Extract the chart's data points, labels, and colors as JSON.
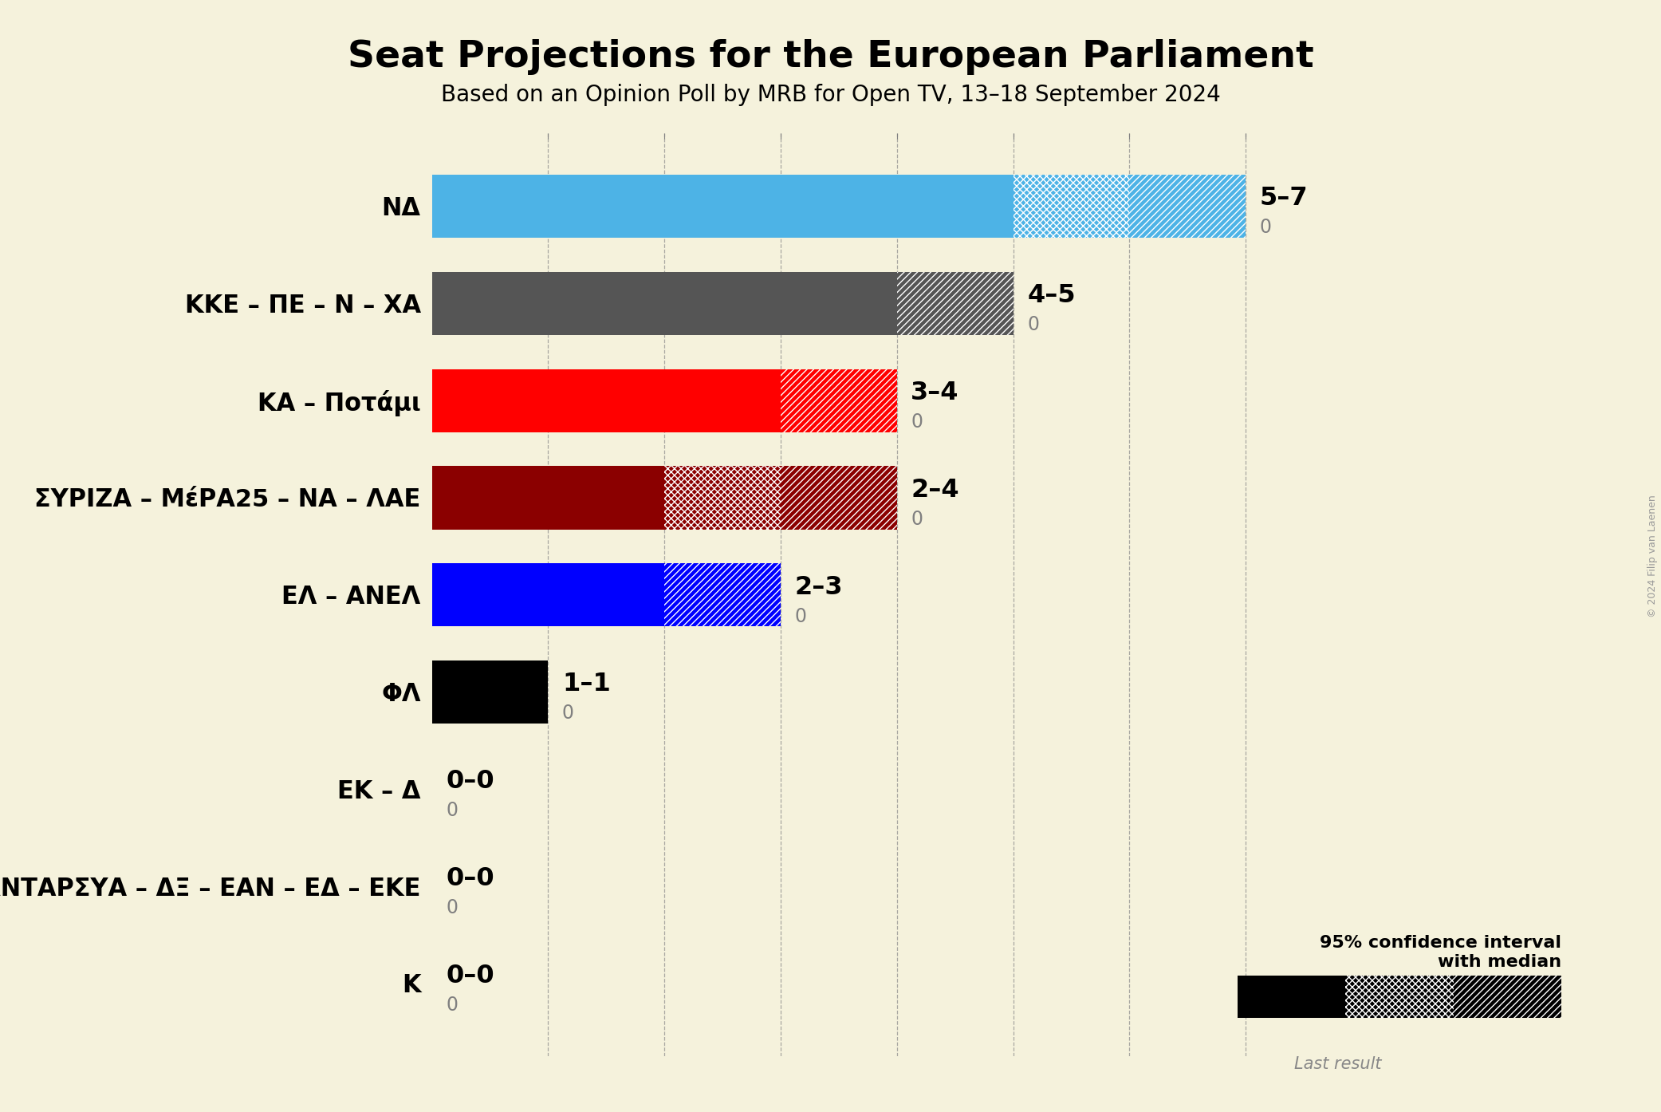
{
  "title": "Seat Projections for the European Parliament",
  "subtitle": "Based on an Opinion Poll by MRB for Open TV, 13–18 September 2024",
  "copyright": "© 2024 Filip van Laenen",
  "background_color": "#f5f2dc",
  "parties": [
    {
      "name": "ΝΔ",
      "low": 5,
      "median": 5,
      "high": 7,
      "last": 0,
      "color": "#4db3e6",
      "hatch_solid": false,
      "has_cross": true,
      "has_diag": true,
      "label": "5–7"
    },
    {
      "name": "ΚΚΕ – ΠΕ – Ν – ΧΑ",
      "low": 4,
      "median": 4,
      "high": 5,
      "last": 0,
      "color": "#555555",
      "hatch_solid": false,
      "has_cross": false,
      "has_diag": true,
      "label": "4–5"
    },
    {
      "name": "ΚΑ – Ποτάμι",
      "low": 3,
      "median": 3,
      "high": 4,
      "last": 0,
      "color": "#ff0000",
      "hatch_solid": false,
      "has_cross": false,
      "has_diag": true,
      "label": "3–4"
    },
    {
      "name": "ΣΥΡΙΖΑ – ΜέΡΑ25 – ΝΑ – ΛΑΕ",
      "low": 2,
      "median": 2,
      "high": 4,
      "last": 0,
      "color": "#8b0000",
      "hatch_solid": false,
      "has_cross": true,
      "has_diag": true,
      "label": "2–4"
    },
    {
      "name": "ΕΛ – ΑΝΕΛ",
      "low": 2,
      "median": 2,
      "high": 3,
      "last": 0,
      "color": "#0000ff",
      "hatch_solid": false,
      "has_cross": false,
      "has_diag": true,
      "label": "2–3"
    },
    {
      "name": "ΦΛ",
      "low": 1,
      "median": 1,
      "high": 1,
      "last": 0,
      "color": "#000000",
      "hatch_solid": false,
      "has_cross": false,
      "has_diag": false,
      "label": "1–1"
    },
    {
      "name": "ΕΚ – Δ",
      "low": 0,
      "median": 0,
      "high": 0,
      "last": 0,
      "color": "#888888",
      "hatch_solid": false,
      "has_cross": false,
      "has_diag": false,
      "label": "0–0"
    },
    {
      "name": "Σπαρ – ΑΝΤΑΡΣΥΑ – ΔΞ – ΕΑΝ – ΕΔ – ΕΚΕ",
      "low": 0,
      "median": 0,
      "high": 0,
      "last": 0,
      "color": "#888888",
      "hatch_solid": false,
      "has_cross": false,
      "has_diag": false,
      "label": "0–0"
    },
    {
      "name": "Κ",
      "low": 0,
      "median": 0,
      "high": 0,
      "last": 0,
      "color": "#888888",
      "hatch_solid": false,
      "has_cross": false,
      "has_diag": false,
      "label": "0–0"
    }
  ],
  "xlim_max": 8,
  "xtick_positions": [
    1,
    2,
    3,
    4,
    5,
    6,
    7
  ],
  "bar_height": 0.65,
  "title_fontsize": 34,
  "subtitle_fontsize": 20,
  "label_fontsize": 23,
  "last_fontsize": 17,
  "party_fontsize": 22,
  "legend_text": "95% confidence interval\nwith median",
  "last_result_text": "Last result"
}
